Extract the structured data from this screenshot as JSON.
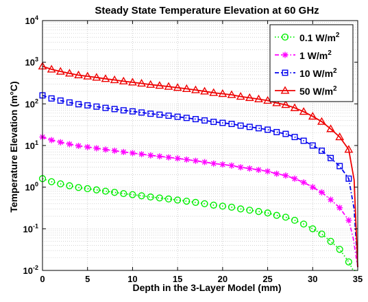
{
  "chart_data": {
    "type": "line",
    "title": "Steady State Temperature Elevation at 60 GHz",
    "xlabel": "Depth in the 3-Layer Model (mm)",
    "ylabel": "Temperature Elevation (m°C)",
    "xlim": [
      0,
      35
    ],
    "ylim_exponents": [
      -2,
      4
    ],
    "y_scale": "log",
    "grid": true,
    "legend_position": "top-right",
    "x_ticks": [
      0,
      5,
      10,
      15,
      20,
      25,
      30,
      35
    ],
    "y_ticks": [
      {
        "base": "10",
        "exp": "-2"
      },
      {
        "base": "10",
        "exp": "-1"
      },
      {
        "base": "10",
        "exp": "0"
      },
      {
        "base": "10",
        "exp": "1"
      },
      {
        "base": "10",
        "exp": "2"
      },
      {
        "base": "10",
        "exp": "3"
      },
      {
        "base": "10",
        "exp": "4"
      }
    ],
    "series": [
      {
        "name": "0.1 W/m",
        "name_sup": "2",
        "color": "#00ee00",
        "marker": "circle",
        "line_style": "dotted",
        "x": [
          0,
          1,
          2,
          3,
          4,
          5,
          6,
          7,
          8,
          9,
          10,
          11,
          12,
          13,
          14,
          15,
          16,
          17,
          18,
          19,
          20,
          21,
          22,
          23,
          24,
          25,
          26,
          27,
          28,
          29,
          30,
          31,
          32,
          33,
          34,
          34.5,
          35
        ],
        "y": [
          1.6,
          1.35,
          1.2,
          1.08,
          0.98,
          0.92,
          0.86,
          0.8,
          0.75,
          0.7,
          0.66,
          0.62,
          0.58,
          0.55,
          0.52,
          0.49,
          0.46,
          0.43,
          0.4,
          0.37,
          0.35,
          0.33,
          0.3,
          0.28,
          0.26,
          0.24,
          0.21,
          0.19,
          0.16,
          0.13,
          0.1,
          0.075,
          0.05,
          0.032,
          0.016,
          0.009,
          0.006
        ]
      },
      {
        "name": "1 W/m",
        "name_sup": "2",
        "color": "#ff00ff",
        "marker": "star",
        "line_style": "dashdot",
        "x": [
          0,
          1,
          2,
          3,
          4,
          5,
          6,
          7,
          8,
          9,
          10,
          11,
          12,
          13,
          14,
          15,
          16,
          17,
          18,
          19,
          20,
          21,
          22,
          23,
          24,
          25,
          26,
          27,
          28,
          29,
          30,
          31,
          32,
          33,
          34,
          34.5,
          35
        ],
        "y": [
          16,
          13.5,
          12,
          10.8,
          9.8,
          9.2,
          8.6,
          8,
          7.5,
          7,
          6.6,
          6.2,
          5.8,
          5.5,
          5.2,
          4.9,
          4.6,
          4.3,
          4,
          3.7,
          3.5,
          3.3,
          3,
          2.8,
          2.6,
          2.4,
          2.1,
          1.9,
          1.6,
          1.3,
          1,
          0.75,
          0.5,
          0.32,
          0.16,
          0.06,
          0.012
        ]
      },
      {
        "name": "10 W/m",
        "name_sup": "2",
        "color": "#0000ee",
        "marker": "square",
        "line_style": "dashdot",
        "x": [
          0,
          1,
          2,
          3,
          4,
          5,
          6,
          7,
          8,
          9,
          10,
          11,
          12,
          13,
          14,
          15,
          16,
          17,
          18,
          19,
          20,
          21,
          22,
          23,
          24,
          25,
          26,
          27,
          28,
          29,
          30,
          31,
          32,
          33,
          34,
          34.6,
          35
        ],
        "y": [
          160,
          135,
          120,
          108,
          98,
          92,
          86,
          80,
          75,
          70,
          66,
          62,
          58,
          55,
          52,
          49,
          46,
          43,
          40,
          37,
          35,
          33,
          30,
          28,
          26,
          24,
          21,
          19,
          16,
          13,
          10,
          7.5,
          5,
          3.2,
          1.6,
          0.3,
          0.012
        ]
      },
      {
        "name": "50 W/m",
        "name_sup": "2",
        "color": "#ee0000",
        "marker": "triangle",
        "line_style": "solid",
        "x": [
          0,
          1,
          2,
          3,
          4,
          5,
          6,
          7,
          8,
          9,
          10,
          11,
          12,
          13,
          14,
          15,
          16,
          17,
          18,
          19,
          20,
          21,
          22,
          23,
          24,
          25,
          26,
          27,
          28,
          29,
          30,
          31,
          32,
          33,
          34,
          34.6,
          35
        ],
        "y": [
          800,
          675,
          600,
          540,
          490,
          460,
          430,
          400,
          375,
          350,
          330,
          310,
          290,
          275,
          260,
          245,
          230,
          215,
          200,
          185,
          175,
          165,
          150,
          140,
          130,
          120,
          105,
          95,
          80,
          65,
          50,
          37.5,
          25,
          16,
          8,
          1.5,
          0.012
        ]
      }
    ]
  }
}
